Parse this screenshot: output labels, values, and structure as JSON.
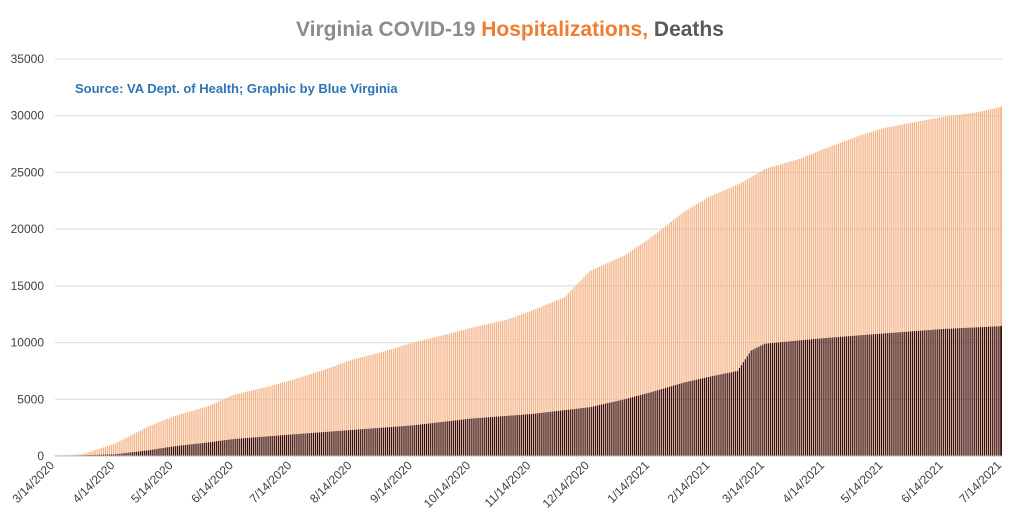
{
  "chart_data": {
    "type": "bar",
    "title_segments": [
      {
        "text": "Virginia COVID-19 ",
        "color": "#8c8c8c"
      },
      {
        "text": "Hospitalizations,",
        "color": "#ed7d31"
      },
      {
        "text": " Deaths",
        "color": "#595959"
      }
    ],
    "annotation": "Source: VA Dept. of Health; Graphic by Blue Virginia",
    "ylim": [
      0,
      35000
    ],
    "yticks": [
      0,
      5000,
      10000,
      15000,
      20000,
      25000,
      30000,
      35000
    ],
    "ytick_labels": [
      "0",
      "5000",
      "10000",
      "15000",
      "20000",
      "25000",
      "30000",
      "35000"
    ],
    "date_start": "2020-03-14",
    "date_end": "2021-07-14",
    "xtick_labels": [
      "3/14/2020",
      "4/14/2020",
      "5/14/2020",
      "6/14/2020",
      "7/14/2020",
      "8/14/2020",
      "9/14/2020",
      "10/14/2020",
      "11/14/2020",
      "12/14/2020",
      "1/14/2021",
      "2/14/2021",
      "3/14/2021",
      "4/14/2021",
      "5/14/2021",
      "6/14/2021",
      "7/14/2021"
    ],
    "grid": true,
    "legend": "none",
    "colors": {
      "hospitalizations": "#f4b183",
      "hospitalizations_accent": "#ed7d31",
      "deaths": "#3b0e0a",
      "deaths_highlight": "#7b2c1e",
      "gridline": "#d9d9d9",
      "axis": "#bfbfbf"
    },
    "series": [
      {
        "key": "hospitalizations",
        "anchors": [
          [
            "2020-03-14",
            50
          ],
          [
            "2020-03-28",
            150
          ],
          [
            "2020-04-14",
            1100
          ],
          [
            "2020-05-01",
            2600
          ],
          [
            "2020-05-14",
            3500
          ],
          [
            "2020-06-01",
            4400
          ],
          [
            "2020-06-14",
            5400
          ],
          [
            "2020-07-01",
            6100
          ],
          [
            "2020-07-14",
            6700
          ],
          [
            "2020-08-01",
            7700
          ],
          [
            "2020-08-14",
            8500
          ],
          [
            "2020-09-01",
            9300
          ],
          [
            "2020-09-14",
            10000
          ],
          [
            "2020-10-01",
            10700
          ],
          [
            "2020-10-14",
            11300
          ],
          [
            "2020-11-01",
            12000
          ],
          [
            "2020-11-14",
            12800
          ],
          [
            "2020-12-01",
            14000
          ],
          [
            "2020-12-14",
            16300
          ],
          [
            "2021-01-01",
            17700
          ],
          [
            "2021-01-14",
            19200
          ],
          [
            "2021-02-01",
            21600
          ],
          [
            "2021-02-14",
            22900
          ],
          [
            "2021-03-01",
            24000
          ],
          [
            "2021-03-14",
            25300
          ],
          [
            "2021-04-01",
            26200
          ],
          [
            "2021-04-14",
            27100
          ],
          [
            "2021-05-01",
            28200
          ],
          [
            "2021-05-14",
            28900
          ],
          [
            "2021-06-01",
            29500
          ],
          [
            "2021-06-14",
            29900
          ],
          [
            "2021-07-01",
            30300
          ],
          [
            "2021-07-14",
            30800
          ]
        ]
      },
      {
        "key": "deaths",
        "anchors": [
          [
            "2020-03-14",
            0
          ],
          [
            "2020-04-14",
            150
          ],
          [
            "2020-05-01",
            500
          ],
          [
            "2020-05-14",
            850
          ],
          [
            "2020-06-01",
            1200
          ],
          [
            "2020-06-14",
            1500
          ],
          [
            "2020-07-14",
            1900
          ],
          [
            "2020-08-14",
            2300
          ],
          [
            "2020-09-14",
            2700
          ],
          [
            "2020-10-14",
            3300
          ],
          [
            "2020-11-14",
            3700
          ],
          [
            "2020-12-14",
            4300
          ],
          [
            "2021-01-01",
            5000
          ],
          [
            "2021-01-14",
            5600
          ],
          [
            "2021-02-01",
            6500
          ],
          [
            "2021-02-14",
            7000
          ],
          [
            "2021-02-28",
            7500
          ],
          [
            "2021-03-07",
            9300
          ],
          [
            "2021-03-14",
            9900
          ],
          [
            "2021-04-14",
            10400
          ],
          [
            "2021-05-14",
            10800
          ],
          [
            "2021-06-14",
            11200
          ],
          [
            "2021-07-14",
            11450
          ]
        ]
      }
    ]
  }
}
